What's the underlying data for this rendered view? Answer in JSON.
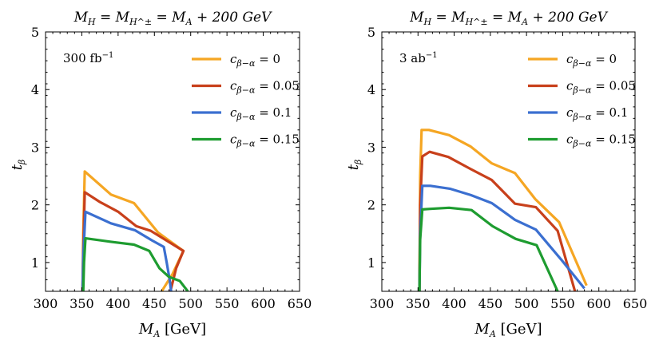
{
  "chart_data": [
    {
      "type": "line",
      "title": "M_H = M_{H^±} = M_A + 200 GeV",
      "xlabel": "M_A  [GeV]",
      "ylabel": "t_β",
      "xlim": [
        300,
        650
      ],
      "ylim": [
        0.5,
        5
      ],
      "xticks": [
        300,
        350,
        400,
        450,
        500,
        550,
        600,
        650
      ],
      "yticks": [
        1,
        2,
        3,
        4,
        5
      ],
      "annotation": "300 fb^-1",
      "annotation_parts": {
        "base": "300 fb",
        "sup": "−1"
      },
      "legend_position": "top-right",
      "series": [
        {
          "name": "c_{β−α} = 0",
          "label_sub": "β−α",
          "label_value": "= 0",
          "color": "#f5a623",
          "x": [
            351,
            352,
            354,
            390,
            422,
            455,
            490,
            475,
            460
          ],
          "y": [
            0.5,
            1.5,
            2.58,
            2.18,
            2.03,
            1.52,
            1.2,
            0.8,
            0.5
          ]
        },
        {
          "name": "c_{β−α} = 0.05",
          "label_sub": "β−α",
          "label_value": "= 0.05",
          "color": "#c8401b",
          "x": [
            351,
            352,
            354,
            375,
            400,
            425,
            445,
            490,
            480,
            475,
            472
          ],
          "y": [
            0.5,
            1.2,
            2.22,
            2.05,
            1.88,
            1.63,
            1.55,
            1.2,
            0.9,
            0.65,
            0.5
          ]
        },
        {
          "name": "c_{β−α} = 0.1",
          "label_sub": "β−α",
          "label_value": "= 0.1",
          "color": "#3b6fd0",
          "x": [
            351,
            352,
            355,
            390,
            423,
            447,
            463,
            467,
            471,
            473
          ],
          "y": [
            0.5,
            1.1,
            1.88,
            1.68,
            1.56,
            1.38,
            1.27,
            1.0,
            0.7,
            0.5
          ]
        },
        {
          "name": "c_{β−α} = 0.15",
          "label_sub": "β−α",
          "label_value": "= 0.15",
          "color": "#1e9c30",
          "x": [
            352,
            353,
            355,
            390,
            422,
            443,
            457,
            470,
            485,
            496
          ],
          "y": [
            0.5,
            1.0,
            1.42,
            1.36,
            1.31,
            1.2,
            0.9,
            0.75,
            0.68,
            0.5
          ]
        }
      ]
    },
    {
      "type": "line",
      "title": "M_H = M_{H^±} = M_A + 200 GeV",
      "xlabel": "M_A  [GeV]",
      "ylabel": "t_β",
      "xlim": [
        300,
        650
      ],
      "ylim": [
        0.5,
        5
      ],
      "xticks": [
        300,
        350,
        400,
        450,
        500,
        550,
        600,
        650
      ],
      "yticks": [
        1,
        2,
        3,
        4,
        5
      ],
      "annotation": "3 ab^-1",
      "annotation_parts": {
        "base": "3 ab",
        "sup": "−1"
      },
      "legend_position": "top-right",
      "series": [
        {
          "name": "c_{β−α} = 0",
          "label_sub": "β−α",
          "label_value": "= 0",
          "color": "#f5a623",
          "x": [
            352,
            353,
            355,
            365,
            393,
            423,
            452,
            484,
            512,
            545,
            583
          ],
          "y": [
            0.5,
            2.5,
            3.3,
            3.3,
            3.21,
            3.01,
            2.72,
            2.55,
            2.1,
            1.7,
            0.6
          ]
        },
        {
          "name": "c_{β−α} = 0.05",
          "label_sub": "β−α",
          "label_value": "= 0.05",
          "color": "#c8401b",
          "x": [
            352,
            353,
            356,
            366,
            392,
            423,
            452,
            484,
            513,
            543,
            567
          ],
          "y": [
            0.5,
            2.0,
            2.84,
            2.92,
            2.83,
            2.62,
            2.43,
            2.02,
            1.96,
            1.55,
            0.5
          ]
        },
        {
          "name": "c_{β−α} = 0.1",
          "label_sub": "β−α",
          "label_value": "= 0.1",
          "color": "#3b6fd0",
          "x": [
            352,
            353,
            356,
            367,
            394,
            423,
            452,
            484,
            513,
            548,
            580
          ],
          "y": [
            0.5,
            1.5,
            2.33,
            2.33,
            2.28,
            2.17,
            2.03,
            1.74,
            1.57,
            1.05,
            0.55
          ]
        },
        {
          "name": "c_{β−α} = 0.15",
          "label_sub": "β−α",
          "label_value": "= 0.15",
          "color": "#1e9c30",
          "x": [
            352,
            353,
            356,
            367,
            393,
            424,
            453,
            485,
            514,
            543
          ],
          "y": [
            0.5,
            1.4,
            1.92,
            1.93,
            1.95,
            1.91,
            1.63,
            1.41,
            1.3,
            0.5
          ]
        }
      ]
    }
  ]
}
